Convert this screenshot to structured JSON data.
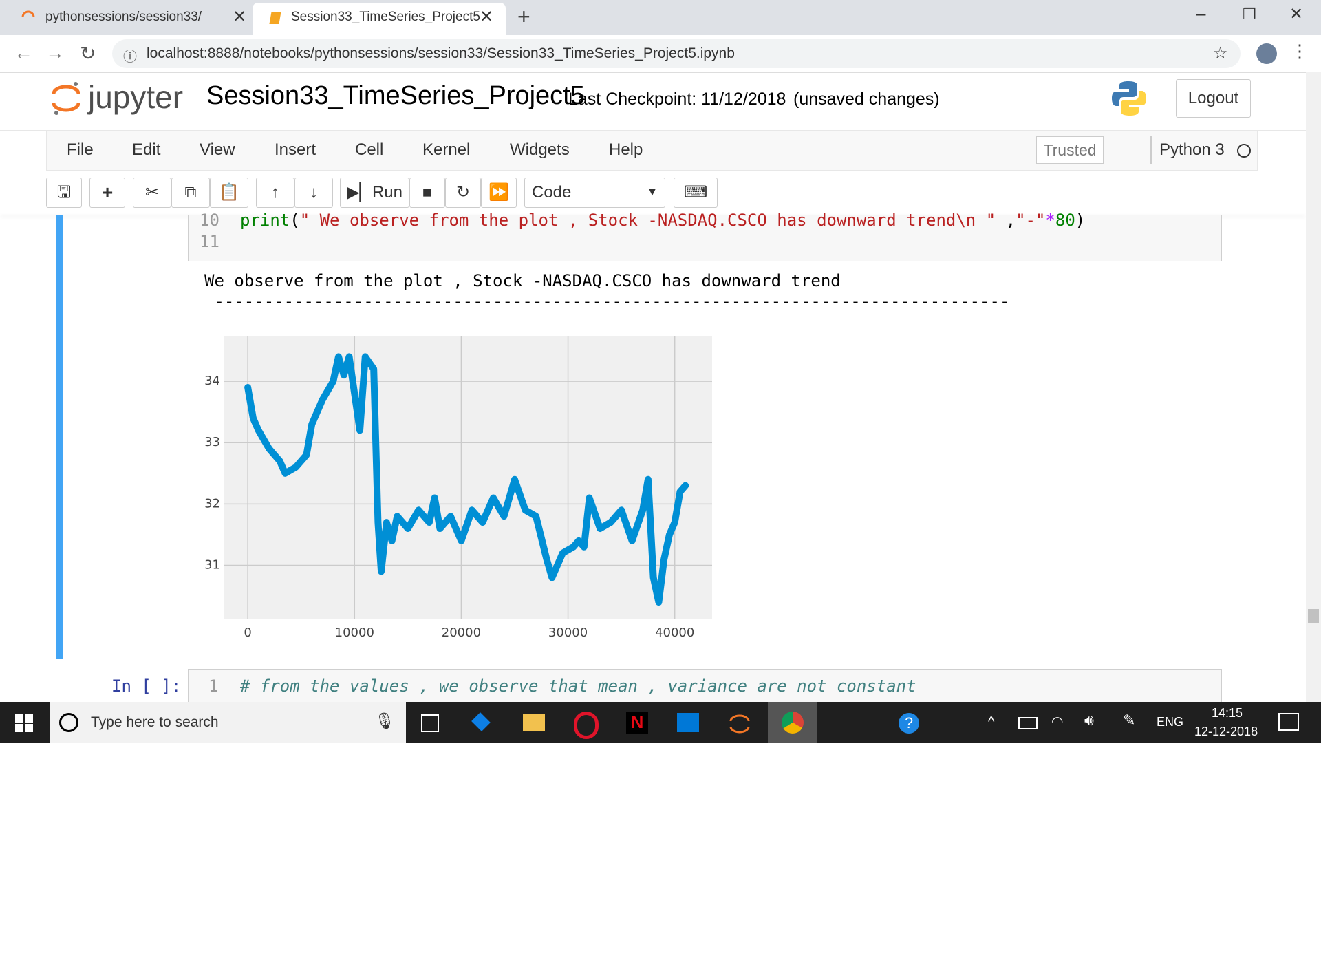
{
  "browser": {
    "tabs": [
      "pythonsessions/session33/",
      "Session33_TimeSeries_Project5"
    ],
    "url": "localhost:8888/notebooks/pythonsessions/session33/Session33_TimeSeries_Project5.ipynb"
  },
  "header": {
    "logo": "jupyter",
    "title": "Session33_TimeSeries_Project5",
    "checkpoint": "Last Checkpoint: 11/12/2018",
    "status": "(unsaved changes)",
    "logout": "Logout"
  },
  "menu": {
    "items": [
      "File",
      "Edit",
      "View",
      "Insert",
      "Cell",
      "Kernel",
      "Widgets",
      "Help"
    ],
    "trusted": "Trusted",
    "kernel": "Python 3"
  },
  "toolbar": {
    "run": "Run",
    "cell_type": "Code"
  },
  "cells": [
    {
      "lines": [
        {
          "number": "10",
          "tokens": [
            "print",
            "(",
            "\" We observe from the plot , Stock -NASDAQ.CSCO has downward trend\\n \"",
            " ,",
            "\"-\"",
            "*",
            "80",
            ")"
          ]
        },
        {
          "number": "11"
        }
      ],
      "output": [
        "We observe from the plot , Stock -NASDAQ.CSCO has downward trend",
        " --------------------------------------------------------------------------------"
      ]
    },
    {
      "prompt": "In [ ]:",
      "lines": [
        {
          "number": "1",
          "tokens": [
            "# from the values , we observe that mean , variance are not constant"
          ]
        }
      ]
    }
  ],
  "chart_data": {
    "type": "line",
    "x": [
      0,
      500,
      1000,
      2000,
      3000,
      3500,
      4500,
      5500,
      6000,
      7000,
      8000,
      8500,
      9000,
      9500,
      10000,
      10500,
      11000,
      11800,
      12200,
      12500,
      13000,
      13500,
      14000,
      15000,
      16000,
      17000,
      17500,
      18000,
      19000,
      20000,
      21000,
      22000,
      23000,
      24000,
      25000,
      26000,
      27000,
      28000,
      28500,
      29500,
      30500,
      31000,
      31500,
      32000,
      33000,
      34000,
      35000,
      36000,
      37000,
      37500,
      38000,
      38500,
      39000,
      39500,
      40000,
      40500,
      41000
    ],
    "series": [
      {
        "color": "#008fd5",
        "values": [
          33.9,
          33.4,
          33.2,
          32.9,
          32.7,
          32.5,
          32.6,
          32.8,
          33.3,
          33.7,
          34.0,
          34.4,
          34.1,
          34.4,
          33.8,
          33.2,
          34.4,
          34.2,
          31.7,
          30.9,
          31.7,
          31.4,
          31.8,
          31.6,
          31.9,
          31.7,
          32.1,
          31.6,
          31.8,
          31.4,
          31.9,
          31.7,
          32.1,
          31.8,
          32.4,
          31.9,
          31.8,
          31.1,
          30.8,
          31.2,
          31.3,
          31.4,
          31.3,
          32.1,
          31.6,
          31.7,
          31.9,
          31.4,
          31.9,
          32.4,
          30.8,
          30.4,
          31.1,
          31.5,
          31.7,
          32.2,
          32.3
        ]
      }
    ],
    "xlim": [
      -2200,
      43500
    ],
    "ylim": [
      30.12,
      34.73
    ],
    "xticks": [
      0,
      10000,
      20000,
      30000,
      40000
    ],
    "yticks": [
      31,
      32,
      33,
      34
    ],
    "grid": true
  },
  "taskbar": {
    "search": "Type here to search",
    "language": "ENG",
    "time": "14:15",
    "date": "12-12-2018"
  }
}
